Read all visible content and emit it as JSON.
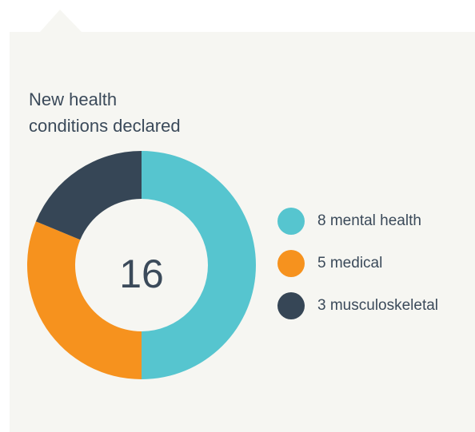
{
  "chart_data": {
    "type": "donut",
    "title": "New health conditions declared",
    "total": 16,
    "categories": [
      "mental health",
      "medical",
      "musculoskeletal"
    ],
    "values": [
      8,
      5,
      3
    ],
    "colors": [
      "#56c5cf",
      "#f6921e",
      "#364656"
    ]
  }
}
